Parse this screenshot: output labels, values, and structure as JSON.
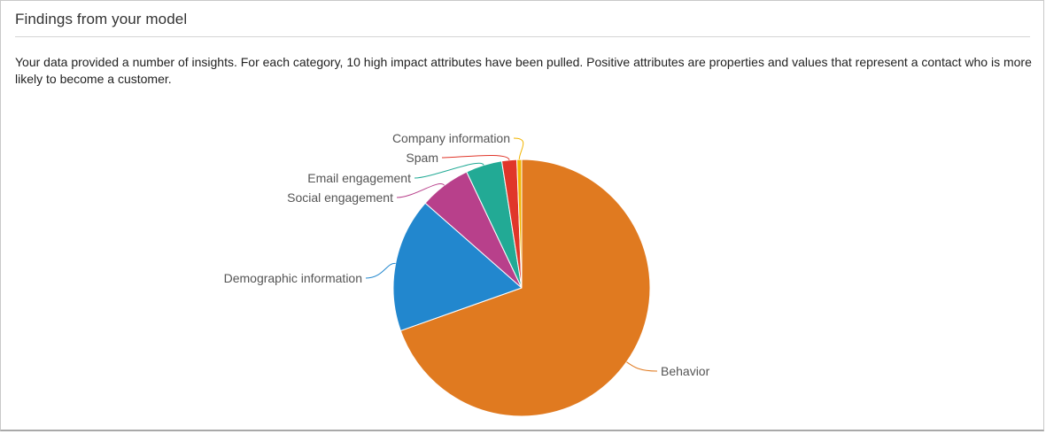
{
  "panel": {
    "title": "Findings from your model",
    "description": "Your data provided a number of insights. For each category, 10 high impact attributes have been pulled. Positive attributes are properties and values that represent a contact who is more likely to become a customer."
  },
  "chart_data": {
    "type": "pie",
    "title": "",
    "slices": [
      {
        "label": "Behavior",
        "value": 70.0,
        "color": "#e07a20"
      },
      {
        "label": "Demographic information",
        "value": 17.0,
        "color": "#2287ce"
      },
      {
        "label": "Social engagement",
        "value": 6.5,
        "color": "#b8408b"
      },
      {
        "label": "Email engagement",
        "value": 4.6,
        "color": "#22aa95"
      },
      {
        "label": "Spam",
        "value": 1.9,
        "color": "#e0362a"
      },
      {
        "label": "Company information",
        "value": 0.6,
        "color": "#f2b500"
      }
    ]
  }
}
